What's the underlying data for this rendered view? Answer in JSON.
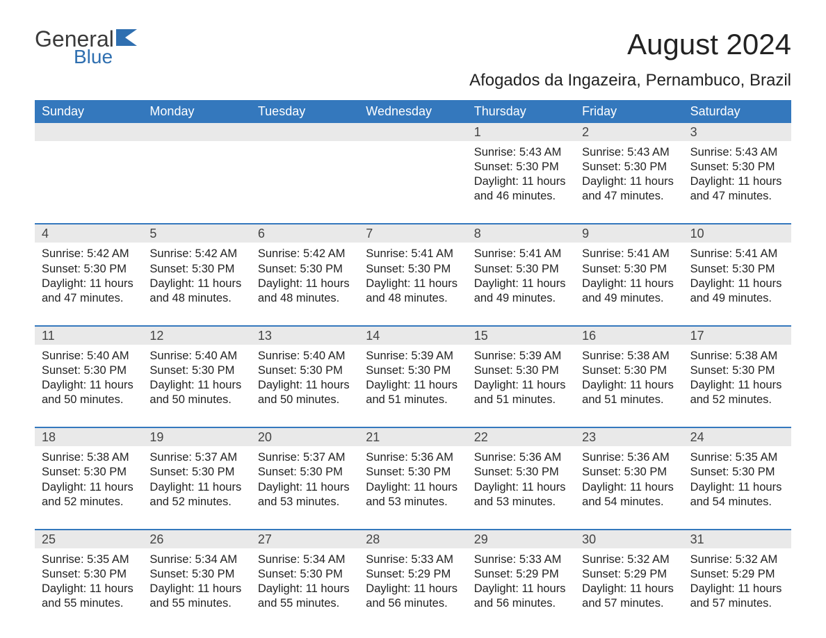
{
  "logo": {
    "word1": "General",
    "word2": "Blue"
  },
  "title": "August 2024",
  "subtitle": "Afogados da Ingazeira, Pernambuco, Brazil",
  "colors": {
    "header_bg": "#3478bd",
    "header_text": "#ffffff",
    "daynum_bg": "#e9e9e9",
    "daynum_text": "#444444",
    "body_text": "#222222",
    "divider": "#3478bd",
    "logo_gray": "#3a3a3a",
    "logo_blue": "#2f6fb0",
    "page_bg": "#ffffff"
  },
  "typography": {
    "title_fontsize": 42,
    "subtitle_fontsize": 24,
    "weekday_fontsize": 18,
    "daynum_fontsize": 18,
    "body_fontsize": 16.5,
    "font_family": "Arial"
  },
  "weekdays": [
    "Sunday",
    "Monday",
    "Tuesday",
    "Wednesday",
    "Thursday",
    "Friday",
    "Saturday"
  ],
  "weeks": [
    [
      null,
      null,
      null,
      null,
      {
        "n": "1",
        "sr": "Sunrise: 5:43 AM",
        "ss": "Sunset: 5:30 PM",
        "d1": "Daylight: 11 hours",
        "d2": "and 46 minutes."
      },
      {
        "n": "2",
        "sr": "Sunrise: 5:43 AM",
        "ss": "Sunset: 5:30 PM",
        "d1": "Daylight: 11 hours",
        "d2": "and 47 minutes."
      },
      {
        "n": "3",
        "sr": "Sunrise: 5:43 AM",
        "ss": "Sunset: 5:30 PM",
        "d1": "Daylight: 11 hours",
        "d2": "and 47 minutes."
      }
    ],
    [
      {
        "n": "4",
        "sr": "Sunrise: 5:42 AM",
        "ss": "Sunset: 5:30 PM",
        "d1": "Daylight: 11 hours",
        "d2": "and 47 minutes."
      },
      {
        "n": "5",
        "sr": "Sunrise: 5:42 AM",
        "ss": "Sunset: 5:30 PM",
        "d1": "Daylight: 11 hours",
        "d2": "and 48 minutes."
      },
      {
        "n": "6",
        "sr": "Sunrise: 5:42 AM",
        "ss": "Sunset: 5:30 PM",
        "d1": "Daylight: 11 hours",
        "d2": "and 48 minutes."
      },
      {
        "n": "7",
        "sr": "Sunrise: 5:41 AM",
        "ss": "Sunset: 5:30 PM",
        "d1": "Daylight: 11 hours",
        "d2": "and 48 minutes."
      },
      {
        "n": "8",
        "sr": "Sunrise: 5:41 AM",
        "ss": "Sunset: 5:30 PM",
        "d1": "Daylight: 11 hours",
        "d2": "and 49 minutes."
      },
      {
        "n": "9",
        "sr": "Sunrise: 5:41 AM",
        "ss": "Sunset: 5:30 PM",
        "d1": "Daylight: 11 hours",
        "d2": "and 49 minutes."
      },
      {
        "n": "10",
        "sr": "Sunrise: 5:41 AM",
        "ss": "Sunset: 5:30 PM",
        "d1": "Daylight: 11 hours",
        "d2": "and 49 minutes."
      }
    ],
    [
      {
        "n": "11",
        "sr": "Sunrise: 5:40 AM",
        "ss": "Sunset: 5:30 PM",
        "d1": "Daylight: 11 hours",
        "d2": "and 50 minutes."
      },
      {
        "n": "12",
        "sr": "Sunrise: 5:40 AM",
        "ss": "Sunset: 5:30 PM",
        "d1": "Daylight: 11 hours",
        "d2": "and 50 minutes."
      },
      {
        "n": "13",
        "sr": "Sunrise: 5:40 AM",
        "ss": "Sunset: 5:30 PM",
        "d1": "Daylight: 11 hours",
        "d2": "and 50 minutes."
      },
      {
        "n": "14",
        "sr": "Sunrise: 5:39 AM",
        "ss": "Sunset: 5:30 PM",
        "d1": "Daylight: 11 hours",
        "d2": "and 51 minutes."
      },
      {
        "n": "15",
        "sr": "Sunrise: 5:39 AM",
        "ss": "Sunset: 5:30 PM",
        "d1": "Daylight: 11 hours",
        "d2": "and 51 minutes."
      },
      {
        "n": "16",
        "sr": "Sunrise: 5:38 AM",
        "ss": "Sunset: 5:30 PM",
        "d1": "Daylight: 11 hours",
        "d2": "and 51 minutes."
      },
      {
        "n": "17",
        "sr": "Sunrise: 5:38 AM",
        "ss": "Sunset: 5:30 PM",
        "d1": "Daylight: 11 hours",
        "d2": "and 52 minutes."
      }
    ],
    [
      {
        "n": "18",
        "sr": "Sunrise: 5:38 AM",
        "ss": "Sunset: 5:30 PM",
        "d1": "Daylight: 11 hours",
        "d2": "and 52 minutes."
      },
      {
        "n": "19",
        "sr": "Sunrise: 5:37 AM",
        "ss": "Sunset: 5:30 PM",
        "d1": "Daylight: 11 hours",
        "d2": "and 52 minutes."
      },
      {
        "n": "20",
        "sr": "Sunrise: 5:37 AM",
        "ss": "Sunset: 5:30 PM",
        "d1": "Daylight: 11 hours",
        "d2": "and 53 minutes."
      },
      {
        "n": "21",
        "sr": "Sunrise: 5:36 AM",
        "ss": "Sunset: 5:30 PM",
        "d1": "Daylight: 11 hours",
        "d2": "and 53 minutes."
      },
      {
        "n": "22",
        "sr": "Sunrise: 5:36 AM",
        "ss": "Sunset: 5:30 PM",
        "d1": "Daylight: 11 hours",
        "d2": "and 53 minutes."
      },
      {
        "n": "23",
        "sr": "Sunrise: 5:36 AM",
        "ss": "Sunset: 5:30 PM",
        "d1": "Daylight: 11 hours",
        "d2": "and 54 minutes."
      },
      {
        "n": "24",
        "sr": "Sunrise: 5:35 AM",
        "ss": "Sunset: 5:30 PM",
        "d1": "Daylight: 11 hours",
        "d2": "and 54 minutes."
      }
    ],
    [
      {
        "n": "25",
        "sr": "Sunrise: 5:35 AM",
        "ss": "Sunset: 5:30 PM",
        "d1": "Daylight: 11 hours",
        "d2": "and 55 minutes."
      },
      {
        "n": "26",
        "sr": "Sunrise: 5:34 AM",
        "ss": "Sunset: 5:30 PM",
        "d1": "Daylight: 11 hours",
        "d2": "and 55 minutes."
      },
      {
        "n": "27",
        "sr": "Sunrise: 5:34 AM",
        "ss": "Sunset: 5:30 PM",
        "d1": "Daylight: 11 hours",
        "d2": "and 55 minutes."
      },
      {
        "n": "28",
        "sr": "Sunrise: 5:33 AM",
        "ss": "Sunset: 5:29 PM",
        "d1": "Daylight: 11 hours",
        "d2": "and 56 minutes."
      },
      {
        "n": "29",
        "sr": "Sunrise: 5:33 AM",
        "ss": "Sunset: 5:29 PM",
        "d1": "Daylight: 11 hours",
        "d2": "and 56 minutes."
      },
      {
        "n": "30",
        "sr": "Sunrise: 5:32 AM",
        "ss": "Sunset: 5:29 PM",
        "d1": "Daylight: 11 hours",
        "d2": "and 57 minutes."
      },
      {
        "n": "31",
        "sr": "Sunrise: 5:32 AM",
        "ss": "Sunset: 5:29 PM",
        "d1": "Daylight: 11 hours",
        "d2": "and 57 minutes."
      }
    ]
  ]
}
